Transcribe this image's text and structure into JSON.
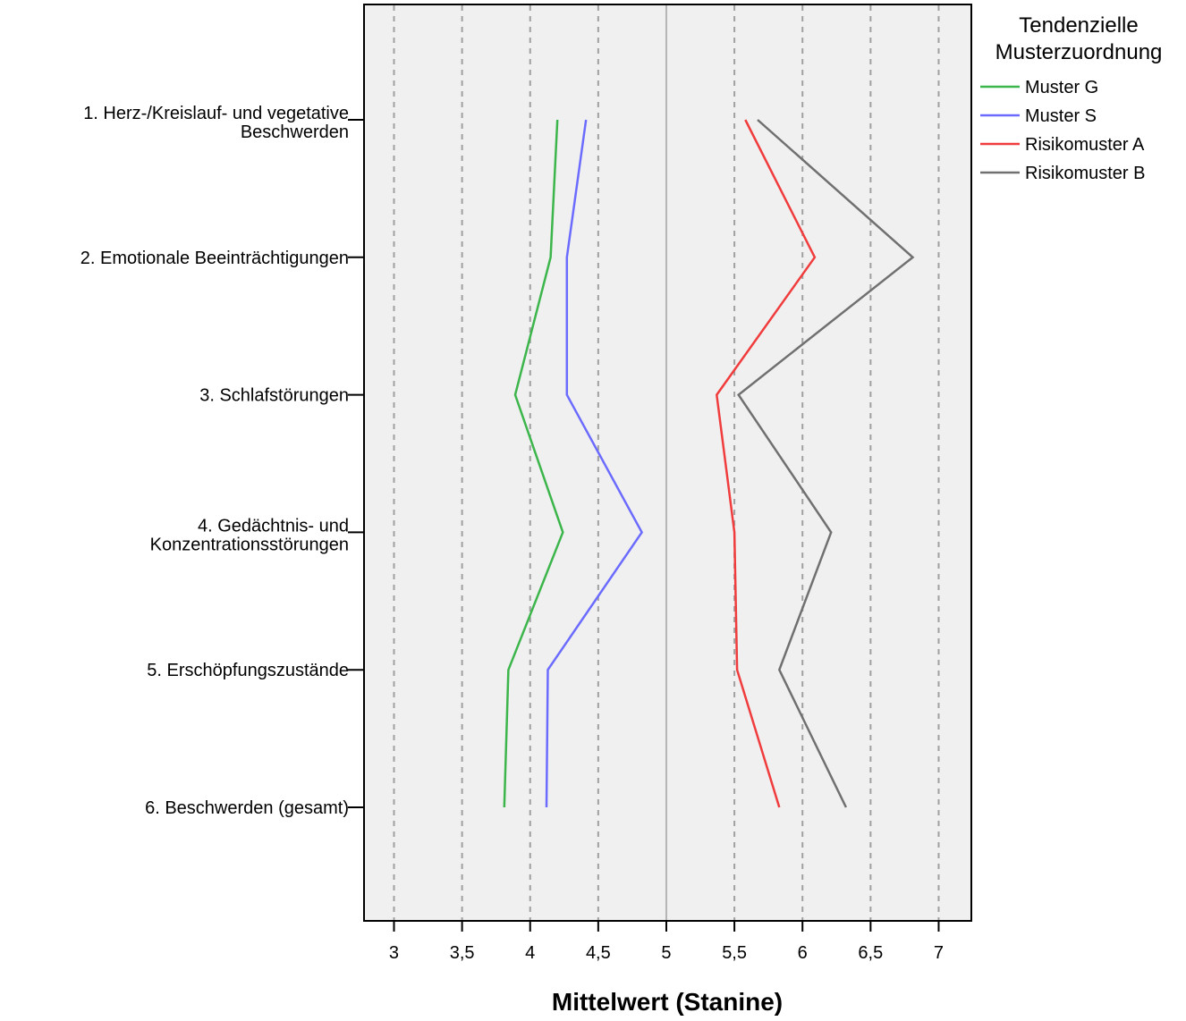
{
  "chart_data": {
    "type": "line",
    "orientation": "horizontal",
    "xlabel": "Mittelwert (Stanine)",
    "xlim": [
      2.78,
      7.24
    ],
    "xticks": [
      {
        "value": 3,
        "label": "3"
      },
      {
        "value": 3.5,
        "label": "3,5"
      },
      {
        "value": 4,
        "label": "4"
      },
      {
        "value": 4.5,
        "label": "4,5"
      },
      {
        "value": 5,
        "label": "5"
      },
      {
        "value": 5.5,
        "label": "5,5"
      },
      {
        "value": 6,
        "label": "6"
      },
      {
        "value": 6.5,
        "label": "6,5"
      },
      {
        "value": 7,
        "label": "7"
      }
    ],
    "categories": [
      [
        "1. Herz-/Kreislauf- und vegetative",
        "Beschwerden"
      ],
      [
        "2. Emotionale Beeinträchtigungen"
      ],
      [
        "3. Schlafstörungen"
      ],
      [
        "4. Gedächtnis- und",
        "Konzentrationsstörungen"
      ],
      [
        "5. Erschöpfungszustände"
      ],
      [
        "6. Beschwerden (gesamt)"
      ]
    ],
    "grid": "vertical-dashed",
    "legend": {
      "title": [
        "Tendenzielle",
        "Musterzuordnung"
      ],
      "placement": "top-right"
    },
    "series": [
      {
        "name": "Muster G",
        "color": "#3cb54a",
        "values": [
          4.2,
          4.15,
          3.89,
          4.24,
          3.84,
          3.81
        ]
      },
      {
        "name": "Muster S",
        "color": "#6b6bff",
        "values": [
          4.41,
          4.27,
          4.27,
          4.82,
          4.13,
          4.12
        ]
      },
      {
        "name": "Risikomuster A",
        "color": "#f03c3c",
        "values": [
          5.58,
          6.09,
          5.37,
          5.5,
          5.52,
          5.83
        ]
      },
      {
        "name": "Risikomuster B",
        "color": "#707070",
        "values": [
          5.67,
          6.81,
          5.53,
          6.21,
          5.83,
          6.32
        ]
      }
    ]
  }
}
